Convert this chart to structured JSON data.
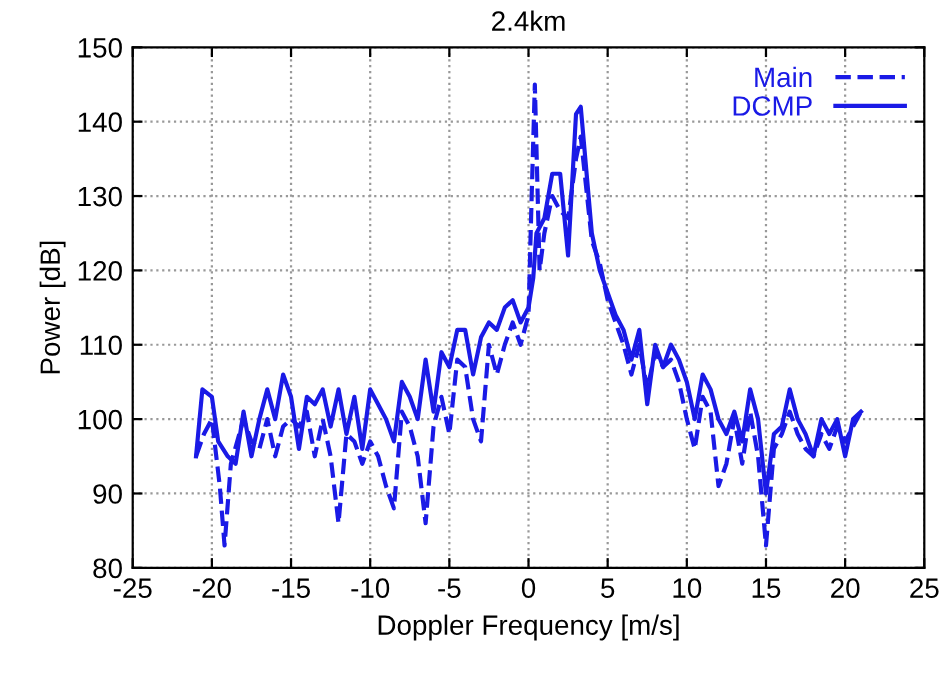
{
  "chart_data": {
    "type": "line",
    "title": "2.4km",
    "xlabel": "Doppler Frequency [m/s]",
    "ylabel": "Power [dB]",
    "xlim": [
      -25,
      25
    ],
    "xticks": [
      -25,
      -20,
      -15,
      -10,
      -5,
      0,
      5,
      10,
      15,
      20,
      25
    ],
    "ylim": [
      80,
      150
    ],
    "yticks": [
      80,
      90,
      100,
      110,
      120,
      130,
      140,
      150
    ],
    "grid": true,
    "legend": "top right",
    "marker": "none",
    "series": [
      {
        "name": "Main",
        "color": "#1a1ae6",
        "line_style": "dashed",
        "x": [
          -21,
          -20.5,
          -20,
          -19.5,
          -19.2,
          -18.8,
          -18,
          -17.5,
          -17,
          -16.5,
          -16,
          -15.5,
          -15,
          -14.5,
          -14,
          -13.5,
          -13,
          -12.5,
          -12,
          -11.5,
          -11,
          -10.5,
          -10,
          -9.5,
          -9,
          -8.5,
          -8,
          -7.5,
          -7,
          -6.5,
          -6,
          -5.5,
          -5,
          -4.5,
          -4,
          -3.5,
          -3,
          -2.5,
          -2,
          -1.5,
          -1,
          -0.5,
          0,
          0.2,
          0.4,
          0.7,
          1,
          1.5,
          2,
          2.5,
          3,
          3.3,
          4,
          4.5,
          5,
          5.5,
          6,
          6.5,
          7,
          7.5,
          8,
          8.5,
          9,
          9.5,
          10,
          10.5,
          11,
          11.5,
          12,
          12.5,
          13,
          13.5,
          14,
          14.5,
          15,
          15.5,
          16,
          16.5,
          17,
          17.5,
          18,
          18.5,
          19,
          19.5,
          20,
          20.5,
          21
        ],
        "values": [
          95,
          98,
          100,
          91,
          83,
          94,
          100,
          97,
          96,
          100,
          95,
          99,
          100,
          99,
          101,
          95,
          100,
          95,
          86,
          98,
          97,
          94,
          97,
          95,
          91,
          88,
          101,
          99,
          95,
          86,
          99,
          103,
          98,
          108,
          107,
          100,
          97,
          110,
          106,
          110,
          113,
          110,
          114,
          130,
          145,
          120,
          125,
          130,
          128,
          127,
          135,
          138,
          124,
          121,
          116,
          113,
          110,
          106,
          110,
          104,
          109,
          107,
          108,
          105,
          100,
          96,
          103,
          101,
          91,
          94,
          100,
          94,
          101,
          95,
          83,
          96,
          98,
          101,
          98,
          96,
          95,
          98,
          96,
          99,
          97,
          99,
          101
        ]
      },
      {
        "name": "DCMP",
        "color": "#1a1ae6",
        "line_style": "solid",
        "x": [
          -21,
          -20.6,
          -20,
          -19.6,
          -19,
          -18.5,
          -18,
          -17.5,
          -17,
          -16.5,
          -16,
          -15.5,
          -15,
          -14.5,
          -14,
          -13.5,
          -13,
          -12.5,
          -12,
          -11.5,
          -11,
          -10.5,
          -10,
          -9.5,
          -9,
          -8.5,
          -8,
          -7.5,
          -7,
          -6.5,
          -6,
          -5.5,
          -5,
          -4.5,
          -4,
          -3.5,
          -3,
          -2.5,
          -2,
          -1.5,
          -1,
          -0.5,
          0,
          0.3,
          0.5,
          1,
          1.5,
          2,
          2.5,
          3,
          3.3,
          4,
          4.5,
          5,
          5.5,
          6,
          6.5,
          7,
          7.5,
          8,
          8.5,
          9,
          9.5,
          10,
          10.5,
          11,
          11.5,
          12,
          12.5,
          13,
          13.5,
          14,
          14.5,
          15,
          15.5,
          16,
          16.5,
          17,
          17.5,
          18,
          18.5,
          19,
          19.5,
          20,
          20.5,
          21
        ],
        "values": [
          95,
          104,
          103,
          97,
          95,
          94,
          101,
          95,
          100,
          104,
          100,
          106,
          103,
          96,
          103,
          102,
          104,
          99,
          104,
          98,
          103,
          96,
          104,
          102,
          100,
          97,
          105,
          103,
          100,
          108,
          101,
          109,
          107,
          112,
          112,
          106,
          111,
          113,
          112,
          115,
          116,
          113,
          115,
          119,
          125,
          127,
          133,
          133,
          122,
          141,
          142,
          125,
          120,
          117,
          114,
          112,
          108,
          112,
          102,
          110,
          107,
          110,
          108,
          105,
          100,
          106,
          104,
          100,
          98,
          101,
          97,
          104,
          100,
          90,
          98,
          99,
          104,
          100,
          98,
          95,
          100,
          98,
          100,
          95,
          100,
          101
        ]
      }
    ]
  }
}
